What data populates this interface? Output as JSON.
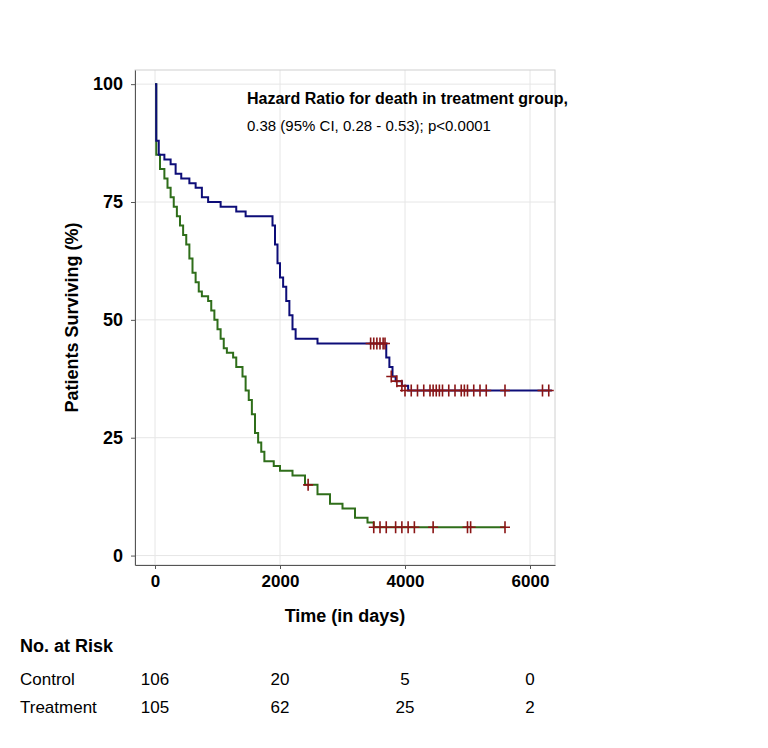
{
  "chart_data": {
    "type": "step",
    "xlabel": "Time (in days)",
    "ylabel": "Patients Surviving (%)",
    "annotation_title": "Hazard Ratio for death in treatment group,",
    "annotation": "0.38 (95% CI, 0.28 - 0.53); p<0.0001",
    "xlim": [
      -320,
      6400
    ],
    "xticks": [
      0,
      2000,
      4000,
      6000
    ],
    "ylim": [
      -2,
      103
    ],
    "yticks": [
      0,
      25,
      50,
      75,
      100
    ],
    "grid": true,
    "at_risk_title": "No. at Risk",
    "series": [
      {
        "name": "Control",
        "color": "#2f6e1a",
        "marker": "plus",
        "x": [
          0,
          20,
          80,
          150,
          200,
          250,
          300,
          350,
          400,
          450,
          500,
          550,
          600,
          650,
          700,
          750,
          850,
          900,
          950,
          1000,
          1050,
          1100,
          1150,
          1250,
          1300,
          1400,
          1450,
          1500,
          1550,
          1600,
          1650,
          1700,
          1750,
          1900,
          2000,
          2200,
          2400,
          2600,
          2800,
          3000,
          3200,
          3400,
          3500,
          5600
        ],
        "values": [
          100,
          85,
          82,
          80,
          78,
          76,
          74,
          72,
          70,
          68,
          66,
          63,
          60,
          58,
          56,
          55,
          54,
          52,
          50,
          48,
          46,
          44,
          43,
          42,
          40,
          38,
          35,
          33,
          30,
          26,
          24,
          22,
          20,
          19,
          18,
          17,
          15,
          13,
          11,
          10,
          8,
          7,
          6,
          6
        ],
        "censored": {
          "x": [
            2450,
            3500,
            3600,
            3700,
            3850,
            3950,
            4050,
            4150,
            4450,
            5000,
            5050,
            5600
          ],
          "y": [
            15,
            6,
            6,
            6,
            6,
            6,
            6,
            6,
            6,
            6,
            6,
            6
          ]
        },
        "at_risk": [
          106,
          20,
          5,
          0
        ]
      },
      {
        "name": "Treatment",
        "color": "#0d0d78",
        "marker": "plus",
        "x": [
          0,
          20,
          60,
          150,
          250,
          330,
          420,
          550,
          650,
          750,
          850,
          1050,
          1300,
          1450,
          1880,
          1920,
          1960,
          2000,
          2050,
          2100,
          2150,
          2200,
          2250,
          2600,
          3700,
          3750,
          3800,
          3850,
          3950,
          4050,
          6350
        ],
        "values": [
          100,
          88,
          85,
          84,
          83,
          81,
          80,
          79,
          78,
          76,
          75,
          74,
          73,
          72,
          70,
          66,
          62,
          59,
          57,
          54,
          51,
          48,
          46,
          45,
          42,
          40,
          38,
          37,
          36,
          35,
          35
        ],
        "censored": {
          "x": [
            3450,
            3500,
            3550,
            3600,
            3650,
            3680,
            3780,
            3870,
            3950,
            4000,
            4100,
            4200,
            4300,
            4400,
            4450,
            4500,
            4550,
            4600,
            4700,
            4800,
            4900,
            4950,
            5000,
            5100,
            5200,
            5300,
            5600,
            6200,
            6300
          ],
          "y": [
            45,
            45,
            45,
            45,
            45,
            45,
            38,
            37,
            36,
            35,
            35,
            35,
            35,
            35,
            35,
            35,
            35,
            35,
            35,
            35,
            35,
            35,
            35,
            35,
            35,
            35,
            35,
            35,
            35
          ]
        },
        "at_risk": [
          105,
          62,
          25,
          2
        ]
      }
    ]
  }
}
